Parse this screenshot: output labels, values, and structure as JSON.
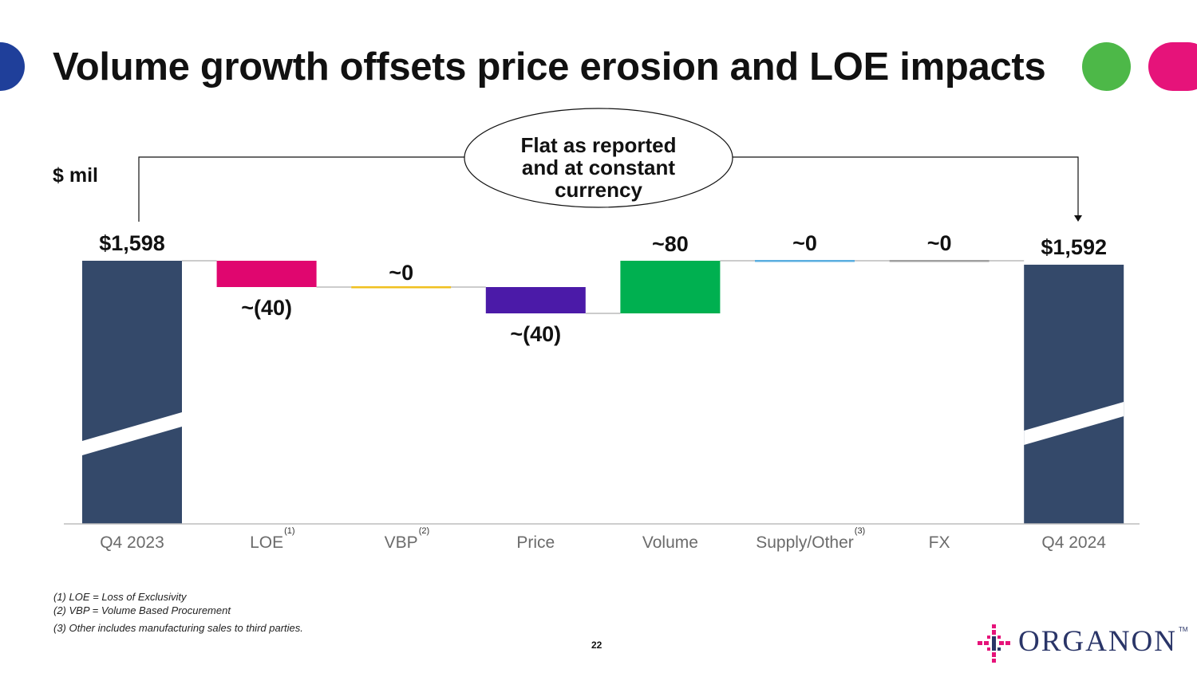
{
  "slide": {
    "title": "Volume growth offsets price erosion and LOE impacts",
    "units_label": "$ mil",
    "callout": [
      "Flat as reported",
      "and at constant",
      "currency"
    ],
    "page_number": "22",
    "footnotes": [
      "(1) LOE = Loss of Exclusivity",
      "(2) VBP = Volume Based Procurement",
      "(3) Other includes manufacturing sales to third parties."
    ],
    "logo_text": "ORGANON",
    "logo_tm": "TM"
  },
  "colors": {
    "total": "#34496a",
    "loe": "#e0066f",
    "vbp": "#f0c020",
    "price": "#4b1aa8",
    "volume": "#00b050",
    "supply": "#5aaee0",
    "fx": "#a0a0a0",
    "deco_blue": "#1f3f9a",
    "deco_green": "#4db848",
    "deco_pink": "#e6137a"
  },
  "chart_data": {
    "type": "waterfall",
    "title": "Volume growth offsets price erosion and LOE impacts",
    "ylabel": "$ mil",
    "axis_break": true,
    "bars": [
      {
        "category": "Q4 2023",
        "superscript": "",
        "kind": "total",
        "value": 1598,
        "label": "$1,598",
        "color_key": "total"
      },
      {
        "category": "LOE",
        "superscript": "(1)",
        "kind": "delta",
        "value": -40,
        "label": "~(40)",
        "color_key": "loe"
      },
      {
        "category": "VBP",
        "superscript": "(2)",
        "kind": "delta",
        "value": 0,
        "label": "~0",
        "color_key": "vbp"
      },
      {
        "category": "Price",
        "superscript": "",
        "kind": "delta",
        "value": -40,
        "label": "~(40)",
        "color_key": "price"
      },
      {
        "category": "Volume",
        "superscript": "",
        "kind": "delta",
        "value": 80,
        "label": "~80",
        "color_key": "volume"
      },
      {
        "category": "Supply/Other",
        "superscript": "(3)",
        "kind": "delta",
        "value": 0,
        "label": "~0",
        "color_key": "supply"
      },
      {
        "category": "FX",
        "superscript": "",
        "kind": "delta",
        "value": 0,
        "label": "~0",
        "color_key": "fx"
      },
      {
        "category": "Q4 2024",
        "superscript": "",
        "kind": "total",
        "value": 1592,
        "label": "$1,592",
        "color_key": "total"
      }
    ]
  }
}
